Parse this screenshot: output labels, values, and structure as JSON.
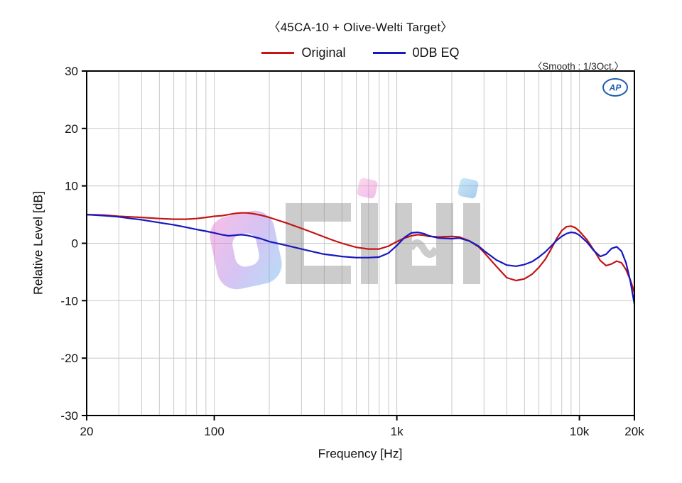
{
  "header": {
    "title": "〈45CA-10 + Olive-Welti Target〉",
    "smoothing_note": "〈Smooth : 1/3Oct.〉",
    "ap_logo_text": "AP"
  },
  "legend": {
    "items": [
      {
        "label": "Original",
        "color": "#c41414"
      },
      {
        "label": "0DB EQ",
        "color": "#1717c0"
      }
    ]
  },
  "axes": {
    "x_label": "Frequency [Hz]",
    "y_label": "Relative Level [dB]"
  },
  "chart_data": {
    "type": "line",
    "title": "〈45CA-10 + Olive-Welti Target〉",
    "xlabel": "Frequency [Hz]",
    "ylabel": "Relative Level [dB]",
    "x_scale": "log",
    "xlim": [
      20,
      20000
    ],
    "ylim": [
      -30,
      30
    ],
    "legend_position": "top-center",
    "grid_on": true,
    "x": [
      20,
      25,
      30,
      35,
      40,
      50,
      60,
      70,
      80,
      90,
      100,
      110,
      120,
      130,
      140,
      150,
      160,
      180,
      200,
      250,
      300,
      350,
      400,
      450,
      500,
      600,
      700,
      800,
      900,
      1000,
      1100,
      1200,
      1300,
      1400,
      1500,
      1700,
      2000,
      2200,
      2500,
      2800,
      3000,
      3500,
      4000,
      4500,
      5000,
      5500,
      6000,
      6500,
      7000,
      7500,
      8000,
      8500,
      9000,
      9500,
      10000,
      11000,
      12000,
      13000,
      14000,
      15000,
      16000,
      17000,
      18000,
      19000,
      20000
    ],
    "series": [
      {
        "name": "Original",
        "color": "#c41414",
        "values": [
          5.0,
          4.9,
          4.7,
          4.6,
          4.5,
          4.3,
          4.2,
          4.2,
          4.3,
          4.5,
          4.7,
          4.8,
          5.0,
          5.2,
          5.3,
          5.3,
          5.2,
          4.9,
          4.5,
          3.5,
          2.6,
          1.8,
          1.1,
          0.5,
          0.0,
          -0.7,
          -1.0,
          -1.0,
          -0.5,
          0.3,
          0.9,
          1.3,
          1.5,
          1.4,
          1.2,
          1.1,
          1.2,
          1.1,
          0.4,
          -0.6,
          -1.6,
          -4.0,
          -6.0,
          -6.5,
          -6.2,
          -5.4,
          -4.2,
          -2.8,
          -1.0,
          0.8,
          2.2,
          2.9,
          3.0,
          2.7,
          2.1,
          0.6,
          -1.2,
          -3.0,
          -3.9,
          -3.6,
          -3.1,
          -3.4,
          -4.6,
          -6.4,
          -8.6
        ]
      },
      {
        "name": "0DB EQ",
        "color": "#1717c0",
        "values": [
          5.0,
          4.8,
          4.6,
          4.3,
          4.1,
          3.6,
          3.2,
          2.8,
          2.4,
          2.1,
          1.8,
          1.5,
          1.3,
          1.4,
          1.5,
          1.4,
          1.2,
          0.8,
          0.3,
          -0.4,
          -1.0,
          -1.5,
          -1.9,
          -2.1,
          -2.3,
          -2.5,
          -2.5,
          -2.4,
          -1.7,
          -0.4,
          1.0,
          1.8,
          1.9,
          1.7,
          1.3,
          0.9,
          0.8,
          0.9,
          0.4,
          -0.5,
          -1.3,
          -2.9,
          -3.8,
          -4.0,
          -3.7,
          -3.2,
          -2.4,
          -1.5,
          -0.5,
          0.5,
          1.2,
          1.7,
          1.9,
          1.8,
          1.4,
          0.2,
          -1.3,
          -2.3,
          -1.9,
          -0.9,
          -0.6,
          -1.4,
          -3.4,
          -6.6,
          -10.6
        ]
      }
    ],
    "x_ticks": [
      {
        "value": 20,
        "label": "20"
      },
      {
        "value": 100,
        "label": "100"
      },
      {
        "value": 1000,
        "label": "1k"
      },
      {
        "value": 10000,
        "label": "10k"
      },
      {
        "value": 20000,
        "label": "20k"
      }
    ],
    "y_ticks": [
      {
        "value": 30,
        "label": "30"
      },
      {
        "value": 20,
        "label": "20"
      },
      {
        "value": 10,
        "label": "10"
      },
      {
        "value": 0,
        "label": "0"
      },
      {
        "value": -10,
        "label": "-10"
      },
      {
        "value": -20,
        "label": "-20"
      },
      {
        "value": -30,
        "label": "-30"
      }
    ],
    "grid": {
      "x_lines": [
        30,
        40,
        50,
        60,
        70,
        80,
        90,
        100,
        200,
        300,
        400,
        500,
        600,
        700,
        800,
        900,
        1000,
        2000,
        3000,
        4000,
        5000,
        6000,
        7000,
        8000,
        9000,
        10000
      ],
      "y_lines": [
        -20,
        -10,
        0,
        10,
        20
      ]
    },
    "colors": {
      "grid": "#c9c9c9",
      "axis": "#000000",
      "ap_logo": "#1c5fae"
    }
  }
}
